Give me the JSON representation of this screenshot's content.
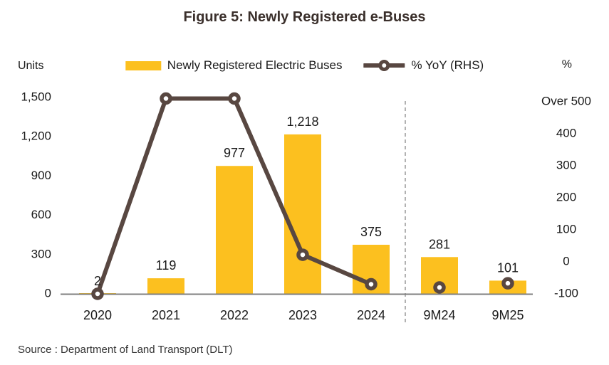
{
  "header": {
    "title": "Figure 5: Newly Registered e-Buses"
  },
  "axes": {
    "left_unit": "Units",
    "right_unit": "%",
    "right_top_label": "Over 500"
  },
  "legend": {
    "bars_label": "Newly Registered Electric Buses",
    "line_label": "% YoY (RHS)"
  },
  "source": "Source : Department of Land Transport (DLT)",
  "colors": {
    "bar": "#FCC01F",
    "line": "#584741",
    "title": "#3A2F2B",
    "text": "#1a1a1a",
    "baseline": "#808080",
    "divider": "#9E9E9E"
  },
  "chart_data": {
    "type": "bar",
    "subtype": "bar-line combo, dual axis",
    "title": "Figure 5: Newly Registered e-Buses",
    "categories": [
      "2020",
      "2021",
      "2022",
      "2023",
      "2024",
      "9M24",
      "9M25"
    ],
    "series": [
      {
        "name": "Newly Registered Electric Buses",
        "type": "bar",
        "axis": "left",
        "values": [
          2,
          119,
          977,
          1218,
          375,
          281,
          101
        ],
        "labels": [
          "2",
          "119",
          "977",
          "1,218",
          "375",
          "281",
          "101"
        ]
      },
      {
        "name": "% YoY (RHS)",
        "type": "line",
        "axis": "right",
        "values": [
          -100,
          510,
          510,
          22,
          -70,
          -80,
          -67
        ],
        "note": "2021 and 2022 exceed the scale and are plotted at the 'Over 500' cap; other values estimated from marker positions",
        "connected_points": 5
      }
    ],
    "left_axis": {
      "title": "Units",
      "min": 0,
      "max": 1500,
      "tick_step": 300
    },
    "right_axis": {
      "title": "%",
      "min": -100,
      "max": 500,
      "tick_step": 100,
      "top_label": "Over 500"
    },
    "divider_after_category": "2024",
    "grid": false,
    "legend_position": "top"
  }
}
